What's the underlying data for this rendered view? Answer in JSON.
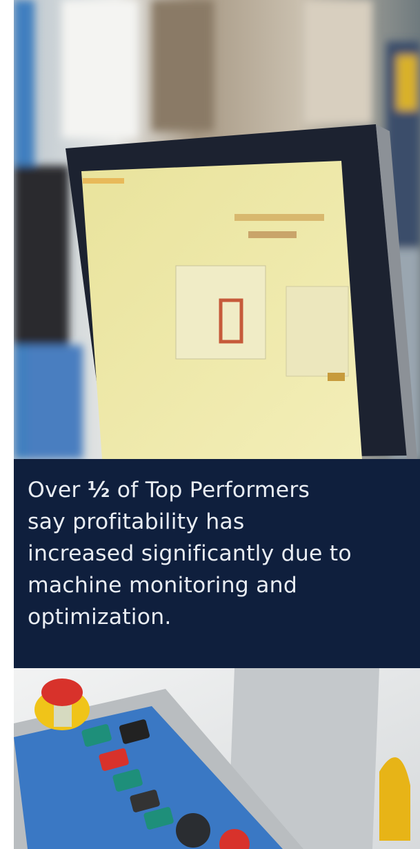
{
  "callout": {
    "line1": [
      "Over ",
      "½",
      " of Top Performers"
    ],
    "lines": [
      "say profitability has",
      "increased significantly due to",
      "machine monitoring and",
      "optimization."
    ]
  }
}
